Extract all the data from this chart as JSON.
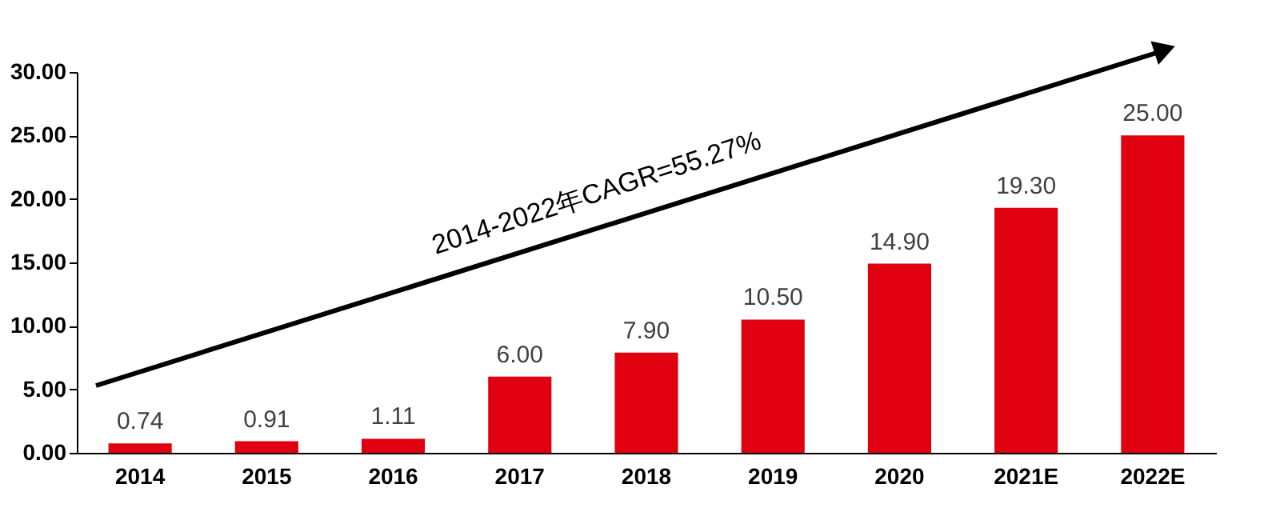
{
  "chart_data": {
    "type": "bar",
    "categories": [
      "2014",
      "2015",
      "2016",
      "2017",
      "2018",
      "2019",
      "2020",
      "2021E",
      "2022E"
    ],
    "values": [
      0.74,
      0.91,
      1.11,
      6.0,
      7.9,
      10.5,
      14.9,
      19.3,
      25.0
    ],
    "value_labels": [
      "0.74",
      "0.91",
      "1.11",
      "6.00",
      "7.90",
      "10.50",
      "14.90",
      "19.30",
      "25.00"
    ],
    "color": "#e0000f",
    "ylim": [
      0,
      30
    ],
    "yticks": [
      {
        "value": 0,
        "label": "0.00"
      },
      {
        "value": 5,
        "label": "5.00"
      },
      {
        "value": 10,
        "label": "10.00"
      },
      {
        "value": 15,
        "label": "15.00"
      },
      {
        "value": 20,
        "label": "20.00"
      },
      {
        "value": 25,
        "label": "25.00"
      },
      {
        "value": 30,
        "label": "30.00"
      }
    ],
    "annotations": [
      "2014-2022年CAGR=55.27%"
    ],
    "grid": false
  }
}
